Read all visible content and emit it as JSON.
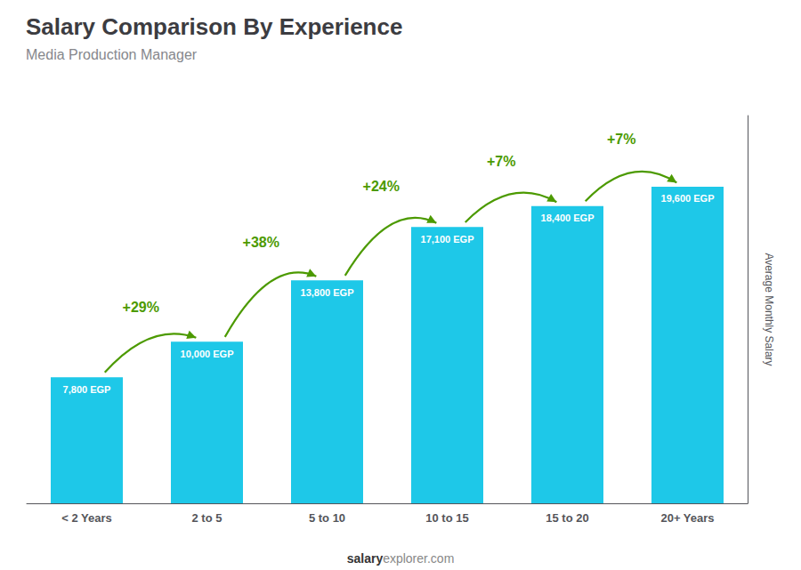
{
  "chart_data": {
    "type": "bar",
    "title": "Salary Comparison By Experience",
    "subtitle": "Media Production Manager",
    "ylabel": "Average Monthly Salary",
    "categories": [
      "< 2 Years",
      "2 to 5",
      "5 to 10",
      "10 to 15",
      "15 to 20",
      "20+ Years"
    ],
    "values": [
      7800,
      10000,
      13800,
      17100,
      18400,
      19600
    ],
    "value_labels": [
      "7,800 EGP",
      "10,000 EGP",
      "13,800 EGP",
      "17,100 EGP",
      "18,400 EGP",
      "19,600 EGP"
    ],
    "data_labels": true,
    "annotations": [
      "+29%",
      "+38%",
      "+24%",
      "+7%",
      "+7%"
    ],
    "footer": [
      "salary",
      "explorer.com"
    ],
    "color": "#1ec8e8",
    "ylim": [
      0,
      24000
    ],
    "grid": false,
    "tick_labels": "x"
  }
}
